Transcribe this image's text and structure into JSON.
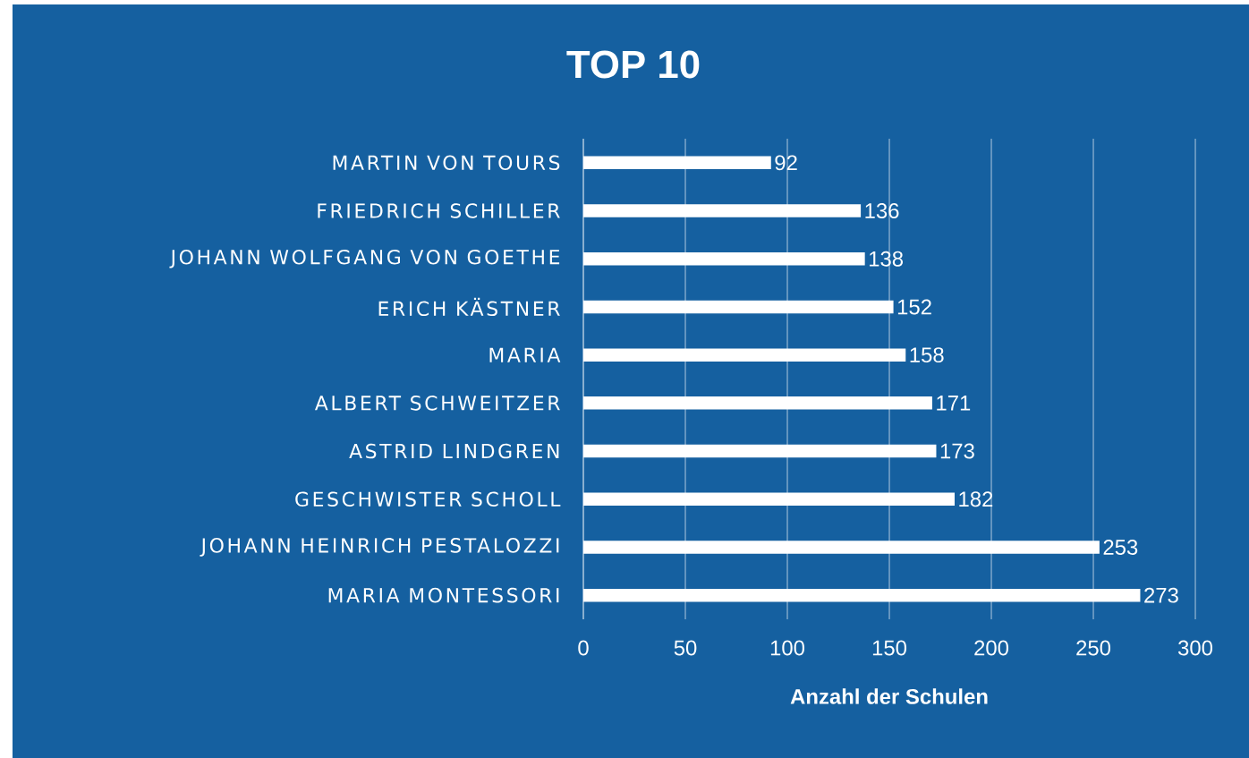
{
  "chart_data": {
    "type": "bar",
    "orientation": "horizontal",
    "title": "TOP 10",
    "xlabel": "Anzahl der Schulen",
    "categories": [
      "MARTIN VON TOURS",
      "FRIEDRICH SCHILLER",
      "JOHANN WOLFGANG VON GOETHE",
      "ERICH KÄSTNER",
      "MARIA",
      "ALBERT SCHWEITZER",
      "ASTRID LINDGREN",
      "GESCHWISTER SCHOLL",
      "JOHANN HEINRICH PESTALOZZI",
      "MARIA MONTESSORI"
    ],
    "values": [
      92,
      136,
      138,
      152,
      158,
      171,
      173,
      182,
      253,
      273
    ],
    "color": "#ffffff",
    "xlim": [
      0,
      300
    ],
    "xticks": [
      0,
      50,
      100,
      150,
      200,
      250,
      300
    ],
    "grid": "x",
    "data_labels": true
  }
}
